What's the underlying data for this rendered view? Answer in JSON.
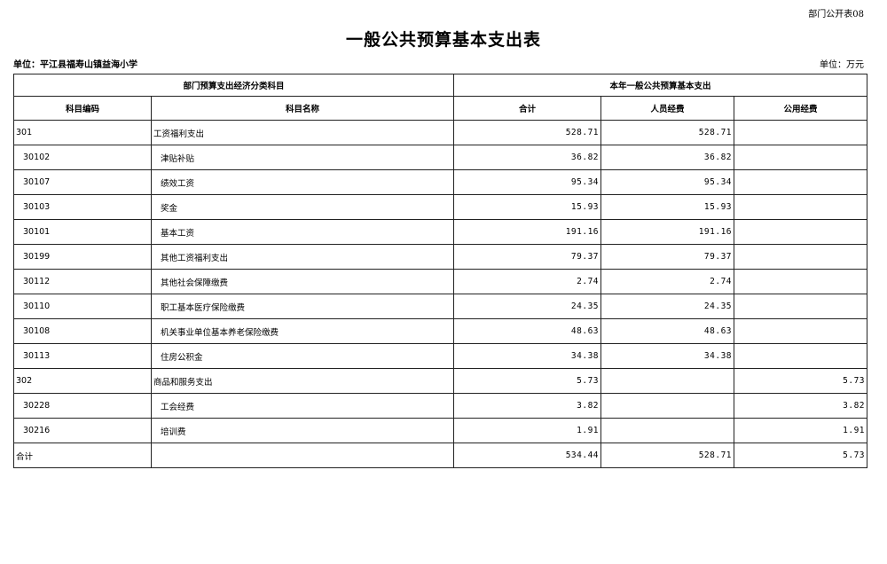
{
  "form_number": "部门公开表08",
  "title": "一般公共预算基本支出表",
  "unit_org": "单位：平江县福寿山镇益海小学",
  "unit_currency": "单位：万元",
  "table": {
    "group_headers": [
      "部门预算支出经济分类科目",
      "本年一般公共预算基本支出"
    ],
    "columns": [
      "科目编码",
      "科目名称",
      "合计",
      "人员经费",
      "公用经费"
    ],
    "rows": [
      {
        "code": "301",
        "name": "工资福利支出",
        "total": "528.71",
        "personnel": "528.71",
        "public": "",
        "level": 0
      },
      {
        "code": "30102",
        "name": "津贴补贴",
        "total": "36.82",
        "personnel": "36.82",
        "public": "",
        "level": 1
      },
      {
        "code": "30107",
        "name": "绩效工资",
        "total": "95.34",
        "personnel": "95.34",
        "public": "",
        "level": 1
      },
      {
        "code": "30103",
        "name": "奖金",
        "total": "15.93",
        "personnel": "15.93",
        "public": "",
        "level": 1
      },
      {
        "code": "30101",
        "name": "基本工资",
        "total": "191.16",
        "personnel": "191.16",
        "public": "",
        "level": 1
      },
      {
        "code": "30199",
        "name": "其他工资福利支出",
        "total": "79.37",
        "personnel": "79.37",
        "public": "",
        "level": 1
      },
      {
        "code": "30112",
        "name": "其他社会保障缴费",
        "total": "2.74",
        "personnel": "2.74",
        "public": "",
        "level": 1
      },
      {
        "code": "30110",
        "name": "职工基本医疗保险缴费",
        "total": "24.35",
        "personnel": "24.35",
        "public": "",
        "level": 1
      },
      {
        "code": "30108",
        "name": "机关事业单位基本养老保险缴费",
        "total": "48.63",
        "personnel": "48.63",
        "public": "",
        "level": 1
      },
      {
        "code": "30113",
        "name": "住房公积金",
        "total": "34.38",
        "personnel": "34.38",
        "public": "",
        "level": 1
      },
      {
        "code": "302",
        "name": "商品和服务支出",
        "total": "5.73",
        "personnel": "",
        "public": "5.73",
        "level": 0
      },
      {
        "code": "30228",
        "name": "工会经费",
        "total": "3.82",
        "personnel": "",
        "public": "3.82",
        "level": 1
      },
      {
        "code": "30216",
        "name": "培训费",
        "total": "1.91",
        "personnel": "",
        "public": "1.91",
        "level": 1
      },
      {
        "code": "合计",
        "name": "",
        "total": "534.44",
        "personnel": "528.71",
        "public": "5.73",
        "level": 0
      }
    ]
  }
}
